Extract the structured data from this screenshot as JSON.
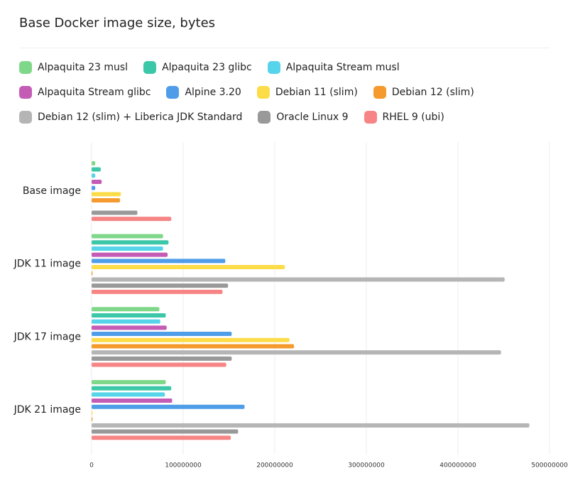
{
  "chart_data": {
    "type": "hbar",
    "title": "Base Docker image size, bytes",
    "categories": [
      "Base image",
      "JDK 11 image",
      "JDK 17 image",
      "JDK 21 image"
    ],
    "series": [
      {
        "name": "Alpaquita 23 musl",
        "color": "#7fd88a",
        "values": [
          4000000,
          78000000,
          74000000,
          81000000
        ]
      },
      {
        "name": "Alpaquita 23 glibc",
        "color": "#3cc8a8",
        "values": [
          10000000,
          84000000,
          81000000,
          87000000
        ]
      },
      {
        "name": "Alpaquita Stream musl",
        "color": "#55d4ea",
        "values": [
          4000000,
          78000000,
          75000000,
          80000000
        ]
      },
      {
        "name": "Alpaquita Stream glibc",
        "color": "#c45bb5",
        "values": [
          11000000,
          83000000,
          82000000,
          88000000
        ]
      },
      {
        "name": "Alpine 3.20",
        "color": "#4f9de8",
        "values": [
          4000000,
          146000000,
          153000000,
          167000000
        ]
      },
      {
        "name": "Debian 11 (slim)",
        "color": "#fddc4a",
        "values": [
          32000000,
          211000000,
          216000000,
          1000000
        ]
      },
      {
        "name": "Debian 12 (slim)",
        "color": "#f59a2c",
        "values": [
          31000000,
          1000000,
          221000000,
          1000000
        ]
      },
      {
        "name": "Debian 12 (slim) + Liberica JDK Standard",
        "color": "#b5b5b5",
        "values": [
          null,
          451000000,
          447000000,
          478000000
        ]
      },
      {
        "name": "Oracle Linux 9",
        "color": "#999999",
        "values": [
          50000000,
          149000000,
          153000000,
          160000000
        ]
      },
      {
        "name": "RHEL 9 (ubi)",
        "color": "#f78585",
        "values": [
          87000000,
          143000000,
          147000000,
          152000000
        ]
      }
    ],
    "xlim": [
      0,
      500000000
    ],
    "xticks": [
      0,
      100000000,
      200000000,
      300000000,
      400000000,
      500000000
    ],
    "grid": true
  }
}
